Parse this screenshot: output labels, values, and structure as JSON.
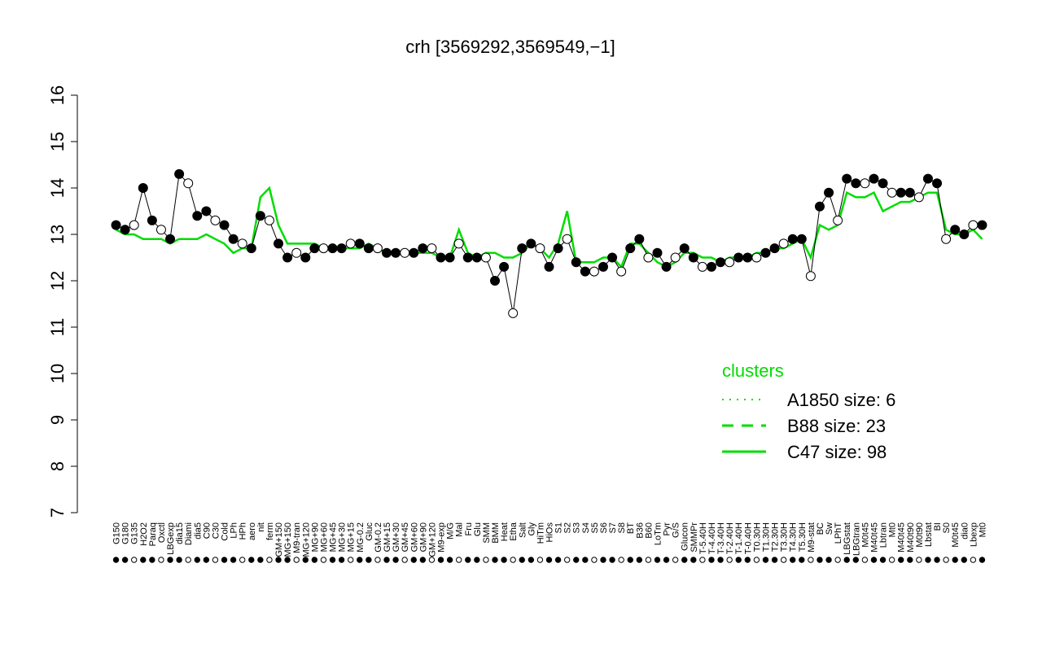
{
  "chart_data": {
    "type": "line",
    "title": "crh [3569292,3569549,−1]",
    "xlabel": "",
    "ylabel": "",
    "ylim": [
      7,
      16
    ],
    "yticks": [
      7,
      8,
      9,
      10,
      11,
      12,
      13,
      14,
      15,
      16
    ],
    "grid": false,
    "categories": [
      "G150",
      "G180",
      "G135",
      "H2O2",
      "Paraq",
      "Oxctl",
      "LBGexp",
      "dia15",
      "Diami",
      "dia5",
      "C90",
      "C30",
      "Cold",
      "LPh",
      "HPh",
      "aero",
      "nit",
      "ferm",
      "GM+150",
      "MG+150",
      "M9-tran",
      "MG+120",
      "MG+90",
      "MG+60",
      "MG+45",
      "MG+30",
      "MG+15",
      "MG-0.2",
      "Gluc",
      "GM-0.2",
      "GM+15",
      "GM+30",
      "GM+45",
      "GM+60",
      "GM+90",
      "GM+120",
      "M9-exp",
      "M/G",
      "Mal",
      "Fru",
      "Glu",
      "SMM",
      "BMM",
      "Heat",
      "Etha",
      "Salt",
      "Gly",
      "HiTm",
      "HiOs",
      "S1",
      "S2",
      "S3",
      "S4",
      "S5",
      "S6",
      "S7",
      "S8",
      "BT",
      "B36",
      "B60",
      "LoTm",
      "Pyr",
      "G/S",
      "Glucon",
      "SMMPr",
      "T-5.40H",
      "T-4.40H",
      "T-3.40H",
      "T-2.40H",
      "T-1.40H",
      "T-0.40H",
      "T0.30H",
      "T1.30H",
      "T2.30H",
      "T3.30H",
      "T4.30H",
      "T5.30H",
      "M9-stat",
      "BC",
      "Sw",
      "LPhT",
      "LBGstat",
      "LBGtran",
      "M0t45",
      "M40t45",
      "Lbtran",
      "Mt0",
      "M40t45",
      "M40t90",
      "M0t90",
      "Lbstat",
      "BI",
      "S0",
      "M0t45",
      "dia0",
      "Lbexp",
      "Mt0"
    ],
    "series": [
      {
        "name": "A1850 size: 6",
        "style": "dotted"
      },
      {
        "name": "B88 size: 23",
        "style": "dashed"
      },
      {
        "name": "C47 size: 98",
        "style": "solid",
        "values": [
          13.1,
          13.0,
          13.0,
          12.9,
          12.9,
          12.9,
          12.8,
          12.9,
          12.9,
          12.9,
          13.0,
          12.9,
          12.8,
          12.6,
          12.7,
          12.7,
          13.8,
          14.0,
          13.2,
          12.8,
          12.8,
          12.8,
          12.8,
          12.7,
          12.7,
          12.7,
          12.7,
          12.7,
          12.8,
          12.7,
          12.6,
          12.6,
          12.6,
          12.6,
          12.6,
          12.6,
          12.5,
          12.5,
          13.1,
          12.6,
          12.5,
          12.6,
          12.6,
          12.5,
          12.5,
          12.6,
          12.8,
          12.7,
          12.5,
          12.8,
          13.5,
          12.4,
          12.4,
          12.4,
          12.5,
          12.5,
          12.3,
          12.8,
          12.8,
          12.6,
          12.4,
          12.3,
          12.4,
          12.6,
          12.6,
          12.5,
          12.5,
          12.4,
          12.5,
          12.5,
          12.5,
          12.6,
          12.6,
          12.7,
          12.7,
          12.8,
          12.9,
          12.5,
          13.2,
          13.1,
          13.2,
          13.9,
          13.8,
          13.8,
          13.9,
          13.5,
          13.6,
          13.7,
          13.7,
          13.8,
          13.9,
          13.9,
          13.1,
          13.0,
          13.0,
          13.1,
          12.9
        ]
      }
    ],
    "points_y": [
      13.2,
      13.1,
      13.2,
      14.0,
      13.3,
      13.1,
      12.9,
      14.3,
      14.1,
      13.4,
      13.5,
      13.3,
      13.2,
      12.9,
      12.8,
      12.7,
      13.4,
      13.3,
      12.8,
      12.5,
      12.6,
      12.5,
      12.7,
      12.7,
      12.7,
      12.7,
      12.8,
      12.8,
      12.7,
      12.7,
      12.6,
      12.6,
      12.6,
      12.6,
      12.7,
      12.7,
      12.5,
      12.5,
      12.8,
      12.5,
      12.5,
      12.5,
      12.0,
      12.3,
      11.3,
      12.7,
      12.8,
      12.7,
      12.3,
      12.7,
      12.9,
      12.4,
      12.2,
      12.2,
      12.3,
      12.5,
      12.2,
      12.7,
      12.9,
      12.5,
      12.6,
      12.3,
      12.5,
      12.7,
      12.5,
      12.3,
      12.3,
      12.4,
      12.4,
      12.5,
      12.5,
      12.5,
      12.6,
      12.7,
      12.8,
      12.9,
      12.9,
      12.1,
      13.6,
      13.9,
      13.3,
      14.2,
      14.1,
      14.1,
      14.2,
      14.1,
      13.9,
      13.9,
      13.9,
      13.8,
      14.2,
      14.1,
      12.9,
      13.1,
      13.0,
      13.2,
      13.2
    ]
  },
  "legend": {
    "title": "clusters",
    "items": [
      {
        "label": "A1850 size: 6",
        "style": "dotted"
      },
      {
        "label": "B88 size: 23",
        "style": "dashed"
      },
      {
        "label": "C47 size: 98",
        "style": "solid"
      }
    ]
  },
  "colors": {
    "cluster_line": "#00dd00",
    "axis": "#000000",
    "point_filled": "#000000",
    "point_open": "#ffffff"
  }
}
